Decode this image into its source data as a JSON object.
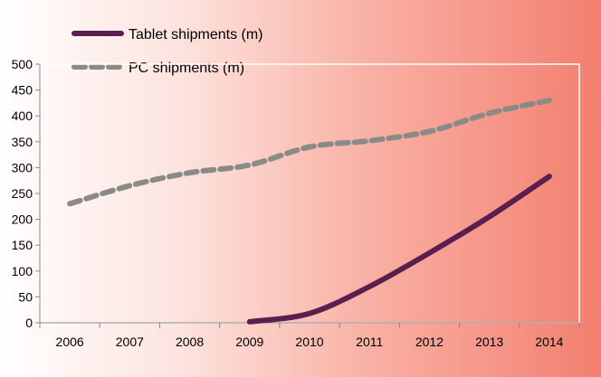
{
  "chart_data": {
    "type": "line",
    "title": "",
    "xlabel": "",
    "ylabel": "",
    "categories": [
      "2006",
      "2007",
      "2008",
      "2009",
      "2010",
      "2011",
      "2012",
      "2013",
      "2014"
    ],
    "ylim": [
      0,
      500
    ],
    "yticks": [
      0,
      50,
      100,
      150,
      200,
      250,
      300,
      350,
      400,
      450,
      500
    ],
    "grid": false,
    "legend_position": "top-left",
    "series": [
      {
        "name": "Tablet shipments (m)",
        "color": "#5a1f4e",
        "style": "solid",
        "values": [
          null,
          null,
          null,
          2,
          18,
          70,
          135,
          205,
          283
        ]
      },
      {
        "name": "PC shipments (m)",
        "color": "#8a8a87",
        "style": "dashed",
        "values": [
          230,
          265,
          290,
          305,
          340,
          352,
          370,
          405,
          430
        ]
      }
    ]
  }
}
